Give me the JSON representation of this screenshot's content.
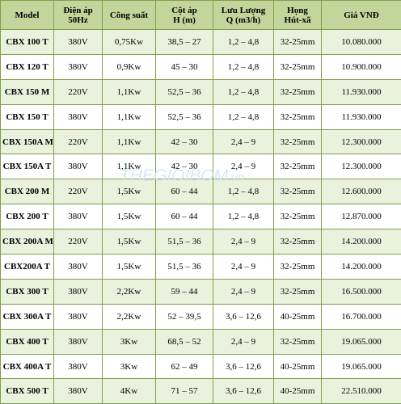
{
  "table": {
    "headers": [
      [
        "Model"
      ],
      [
        "Điện áp",
        "50Hz"
      ],
      [
        "Công suất"
      ],
      [
        "Cột áp",
        "H (m)"
      ],
      [
        "Lưu Lượng",
        "Q (m3/h)"
      ],
      [
        "Họng",
        "Hút-xã"
      ],
      [
        "Giá VNĐ"
      ]
    ],
    "rows": [
      [
        "CBX 100 T",
        "380V",
        "0,75Kw",
        "38,5 – 27",
        "1,2 – 4,8",
        "32-25mm",
        "10.080.000"
      ],
      [
        "CBX 120 T",
        "380V",
        "0,9Kw",
        "45 – 30",
        "1,2 – 4,8",
        "32-25mm",
        "10.900.000"
      ],
      [
        "CBX 150 M",
        "220V",
        "1,1Kw",
        "52,5 – 36",
        "1,2 – 4,8",
        "32-25mm",
        "11.930.000"
      ],
      [
        "CBX 150 T",
        "380V",
        "1,1Kw",
        "52,5 – 36",
        "1,2 – 4,8",
        "32-25mm",
        "11.930.000"
      ],
      [
        "CBX 150A M",
        "220V",
        "1,1Kw",
        "42 – 30",
        "2,4 – 9",
        "32-25mm",
        "12.300.000"
      ],
      [
        "CBX 150A T",
        "380V",
        "1,1Kw",
        "42 – 30",
        "2,4 – 9",
        "32-25mm",
        "12.300.000"
      ],
      [
        "CBX 200 M",
        "220V",
        "1,5Kw",
        "60 – 44",
        "1,2 – 4,8",
        "32-25mm",
        "12.600.000"
      ],
      [
        "CBX 200 T",
        "380V",
        "1,5Kw",
        "60 – 44",
        "1,2 – 4,8",
        "32-25mm",
        "12.870.000"
      ],
      [
        "CBX 200A M",
        "220V",
        "1,5Kw",
        "51,5 – 36",
        "2,4 – 9",
        "32-25mm",
        "14.200.000"
      ],
      [
        "CBX200A T",
        "380V",
        "1,5Kw",
        "51,5 – 36",
        "2,4 – 9",
        "32-25mm",
        "14.200.000"
      ],
      [
        "CBX 300 T",
        "380V",
        "2,2Kw",
        "59 – 44",
        "2,4 – 9",
        "32-25mm",
        "16.500.000"
      ],
      [
        "CBX 300A T",
        "380V",
        "2,2Kw",
        "52 – 39,5",
        "3,6 – 12,6",
        "40-25mm",
        "16.700.000"
      ],
      [
        "CBX 400 T",
        "380V",
        "3Kw",
        "68,5 – 52",
        "2,4 – 9",
        "32-25mm",
        "19.065.000"
      ],
      [
        "CBX 400A T",
        "380V",
        "3Kw",
        "62 – 49",
        "3,6 – 12,6",
        "40-25mm",
        "19.065.000"
      ],
      [
        "CBX 500 T",
        "380V",
        "4Kw",
        "71 – 57",
        "3,6 – 12,6",
        "40-25mm",
        "22.510.000"
      ]
    ]
  },
  "watermark": {
    "main": "THEGIOIBOM",
    "suffix": ".vn"
  },
  "colors": {
    "header_bg": "#c2d69b",
    "odd_row_bg": "#eaf1dd",
    "even_row_bg": "#ffffff",
    "border": "#7f9f4f",
    "watermark": "#cfe8f5"
  }
}
